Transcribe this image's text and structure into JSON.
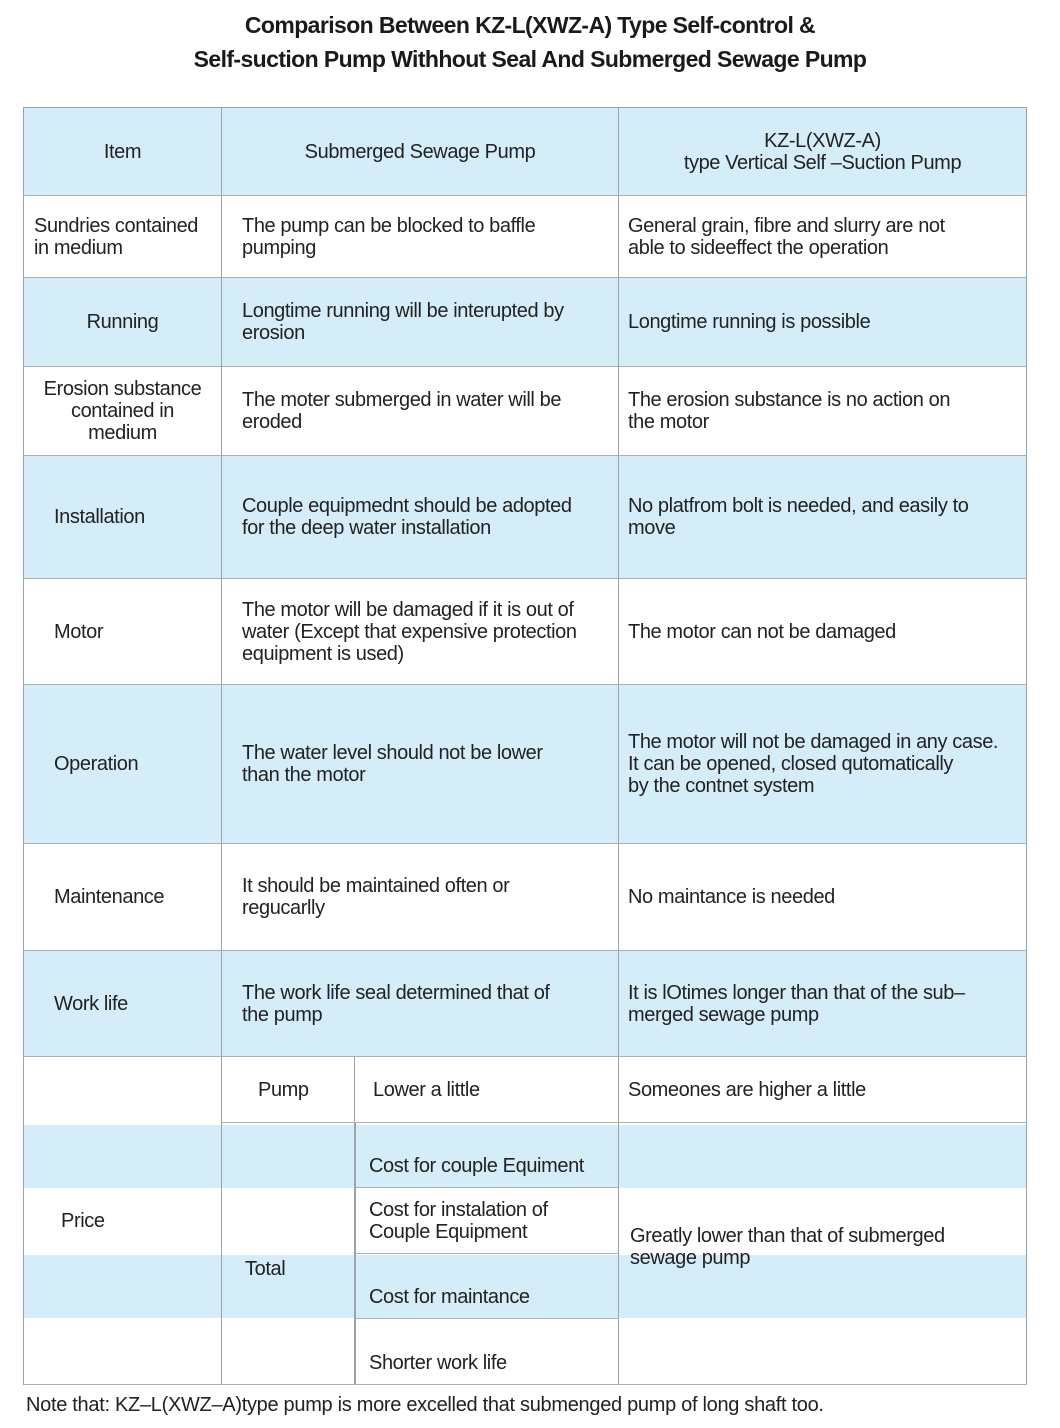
{
  "title": {
    "line1": "Comparison Between KZ-L(XWZ-A) Type Self-control &",
    "line2": "Self-suction Pump Withhout Seal And Submerged Sewage Pump"
  },
  "header": {
    "item": "Item",
    "submerged": "Submerged Sewage Pump",
    "kz": "KZ-L(XWZ-A)\ntype Vertical Self –Suction Pump"
  },
  "rows": [
    {
      "item": "Sundries contained\nin medium",
      "submerged": "The pump can be blocked to baffle\npumping",
      "kz": "General grain, fibre and slurry are not\nable to sideeffect the operation",
      "blue": false
    },
    {
      "item": "Running",
      "submerged": "Longtime running will be interupted by\nerosion",
      "kz": "Longtime running is possible",
      "blue": true
    },
    {
      "item": "Erosion substance\ncontained in\nmedium",
      "submerged": "The moter submerged in water will be\neroded",
      "kz": "The erosion substance is no action on\nthe motor",
      "blue": false
    },
    {
      "item": "Installation",
      "submerged": "Couple equipmednt should be adopted\nfor  the  deep  water  installation",
      "kz": "No platfrom bolt is needed, and easily to\nmove",
      "blue": true
    },
    {
      "item": "Motor",
      "submerged": "The motor will be damaged if it is out of\nwater (Except that expensive protection\nequipment is used)",
      "kz": "The motor can not be damaged",
      "blue": false
    },
    {
      "item": "Operation",
      "submerged": "The water level should not be lower\nthan the motor",
      "kz": "The motor will not be damaged in any case.\nIt  can  be  opened,  closed  qutomatically\nby the contnet system",
      "blue": true
    },
    {
      "item": "Maintenance",
      "submerged": "It should be maintained often or\nregucarlly",
      "kz": "No maintance is needed",
      "blue": false
    },
    {
      "item": "Work life",
      "submerged": "The work life seal determined that of\nthe pump",
      "kz": "It is lOtimes longer than that of the sub–\nmerged sewage pump",
      "blue": true
    }
  ],
  "price": {
    "item": "Price",
    "pump_label": "Pump",
    "pump_value": "Lower a little",
    "pump_kz": "Someones are higher a little",
    "total_label": "Total",
    "total_items": [
      "Cost for couple Equiment",
      "Cost for instalation of\nCouple Equipment",
      "Cost for maintance",
      "Shorter work life"
    ],
    "total_kz": "Greatly lower than that of submerged\nsewage pump"
  },
  "note": "Note that: KZ–L(XWZ–A)type pump is more excelled that submenged pump of long shaft too."
}
